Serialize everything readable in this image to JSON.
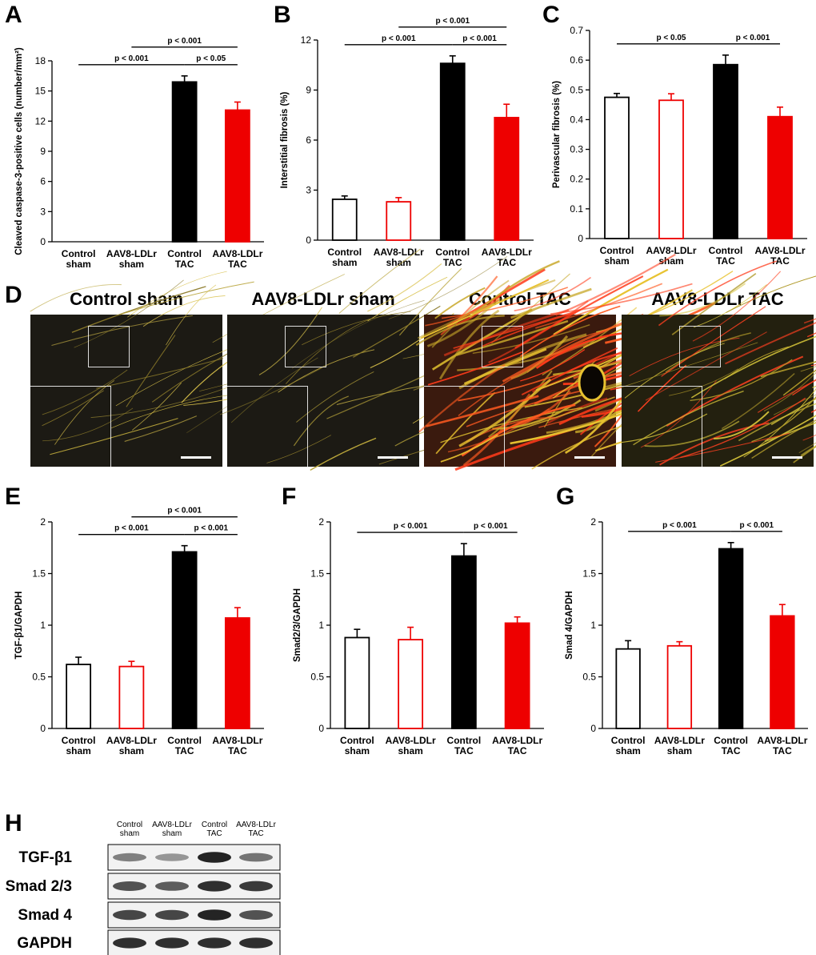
{
  "panel_letters": {
    "A": "A",
    "B": "B",
    "C": "C",
    "D": "D",
    "E": "E",
    "F": "F",
    "G": "G",
    "H": "H"
  },
  "colors": {
    "black": "#000000",
    "red": "#ee0000",
    "white": "#ffffff"
  },
  "chart_data": [
    {
      "id": "A",
      "type": "bar",
      "ylabel": "Cleaved caspase-3-positive cells (number/mm²)",
      "ylim": [
        0,
        18
      ],
      "yticks": [
        0,
        3,
        6,
        9,
        12,
        15,
        18
      ],
      "categories": [
        [
          "Control",
          "sham"
        ],
        [
          "AAV8-LDLr",
          "sham"
        ],
        [
          "Control",
          "TAC"
        ],
        [
          "AAV8-LDLr",
          "TAC"
        ]
      ],
      "values": [
        0,
        0,
        15.9,
        13.1
      ],
      "errors": [
        0,
        0,
        0.6,
        0.8
      ],
      "styles": [
        "open-black",
        "open-red",
        "solid-black",
        "solid-red"
      ],
      "significance": [
        {
          "from": 0,
          "to": 2,
          "label": "p < 0.001",
          "level": 1
        },
        {
          "from": 2,
          "to": 3,
          "label": "p < 0.05",
          "level": 1
        },
        {
          "from": 1,
          "to": 3,
          "label": "p < 0.001",
          "level": 2
        }
      ]
    },
    {
      "id": "B",
      "type": "bar",
      "ylabel": "Interstitial fibrosis (%)",
      "ylim": [
        0,
        12
      ],
      "yticks": [
        0,
        3,
        6,
        9,
        12
      ],
      "categories": [
        [
          "Control",
          "sham"
        ],
        [
          "AAV8-LDLr",
          "sham"
        ],
        [
          "Control",
          "TAC"
        ],
        [
          "AAV8-LDLr",
          "TAC"
        ]
      ],
      "values": [
        2.45,
        2.3,
        10.6,
        7.35
      ],
      "errors": [
        0.2,
        0.25,
        0.45,
        0.8
      ],
      "styles": [
        "open-black",
        "open-red",
        "solid-black",
        "solid-red"
      ],
      "significance": [
        {
          "from": 0,
          "to": 2,
          "label": "p < 0.001",
          "level": 1
        },
        {
          "from": 2,
          "to": 3,
          "label": "p < 0.001",
          "level": 1
        },
        {
          "from": 1,
          "to": 3,
          "label": "p < 0.001",
          "level": 2
        }
      ]
    },
    {
      "id": "C",
      "type": "bar",
      "ylabel": "Perivascular fibrosis (%)",
      "ylim": [
        0,
        0.7
      ],
      "yticks": [
        0,
        0.1,
        0.2,
        0.3,
        0.4,
        0.5,
        0.6,
        0.7
      ],
      "categories": [
        [
          "Control",
          "sham"
        ],
        [
          "AAV8-LDLr",
          "sham"
        ],
        [
          "Control",
          "TAC"
        ],
        [
          "AAV8-LDLr",
          "TAC"
        ]
      ],
      "values": [
        0.475,
        0.465,
        0.585,
        0.41
      ],
      "errors": [
        0.013,
        0.022,
        0.032,
        0.032
      ],
      "styles": [
        "open-black",
        "open-red",
        "solid-black",
        "solid-red"
      ],
      "significance": [
        {
          "from": 0,
          "to": 2,
          "label": "p < 0.05",
          "level": 1
        },
        {
          "from": 2,
          "to": 3,
          "label": "p < 0.001",
          "level": 1
        }
      ]
    },
    {
      "id": "E",
      "type": "bar",
      "ylabel": "TGF-β1/GAPDH",
      "ylim": [
        0,
        2
      ],
      "yticks": [
        0,
        0.5,
        1,
        1.5,
        2
      ],
      "categories": [
        [
          "Control",
          "sham"
        ],
        [
          "AAV8-LDLr",
          "sham"
        ],
        [
          "Control",
          "TAC"
        ],
        [
          "AAV8-LDLr",
          "TAC"
        ]
      ],
      "values": [
        0.62,
        0.6,
        1.71,
        1.07
      ],
      "errors": [
        0.07,
        0.05,
        0.06,
        0.1
      ],
      "styles": [
        "open-black",
        "open-red",
        "solid-black",
        "solid-red"
      ],
      "significance": [
        {
          "from": 0,
          "to": 2,
          "label": "p < 0.001",
          "level": 1
        },
        {
          "from": 2,
          "to": 3,
          "label": "p < 0.001",
          "level": 1
        },
        {
          "from": 1,
          "to": 3,
          "label": "p < 0.001",
          "level": 2
        }
      ]
    },
    {
      "id": "F",
      "type": "bar",
      "ylabel": "Smad2/3/GAPDH",
      "ylim": [
        0,
        2
      ],
      "yticks": [
        0,
        0.5,
        1,
        1.5,
        2
      ],
      "categories": [
        [
          "Control",
          "sham"
        ],
        [
          "AAV8-LDLr",
          "sham"
        ],
        [
          "Control",
          "TAC"
        ],
        [
          "AAV8-LDLr",
          "TAC"
        ]
      ],
      "values": [
        0.88,
        0.86,
        1.67,
        1.02
      ],
      "errors": [
        0.08,
        0.12,
        0.12,
        0.06
      ],
      "styles": [
        "open-black",
        "open-red",
        "solid-black",
        "solid-red"
      ],
      "significance": [
        {
          "from": 0,
          "to": 2,
          "label": "p < 0.001",
          "level": 1
        },
        {
          "from": 2,
          "to": 3,
          "label": "p < 0.001",
          "level": 1
        }
      ]
    },
    {
      "id": "G",
      "type": "bar",
      "ylabel": "Smad 4/GAPDH",
      "ylim": [
        0,
        2
      ],
      "yticks": [
        0,
        0.5,
        1,
        1.5,
        2
      ],
      "categories": [
        [
          "Control",
          "sham"
        ],
        [
          "AAV8-LDLr",
          "sham"
        ],
        [
          "Control",
          "TAC"
        ],
        [
          "AAV8-LDLr",
          "TAC"
        ]
      ],
      "values": [
        0.77,
        0.8,
        1.74,
        1.09
      ],
      "errors": [
        0.08,
        0.04,
        0.06,
        0.11
      ],
      "styles": [
        "open-black",
        "open-red",
        "solid-black",
        "solid-red"
      ],
      "significance": [
        {
          "from": 0,
          "to": 2,
          "label": "p < 0.001",
          "level": 1
        },
        {
          "from": 2,
          "to": 3,
          "label": "p < 0.001",
          "level": 1
        }
      ]
    }
  ],
  "micrographs": {
    "titles": [
      "Control sham",
      "AAV8-LDLr sham",
      "Control TAC",
      "AAV8-LDLr TAC"
    ],
    "staining": [
      "sparse-yellow",
      "sparse-yellow",
      "dense-red",
      "moderate-yellow"
    ]
  },
  "western_blot": {
    "lane_labels": [
      [
        "Control",
        "sham"
      ],
      [
        "AAV8-LDLr",
        "sham"
      ],
      [
        "Control",
        "TAC"
      ],
      [
        "AAV8-LDLr",
        "TAC"
      ]
    ],
    "bands": [
      {
        "name": "TGF-β1",
        "intensity": [
          0.55,
          0.45,
          0.95,
          0.6
        ]
      },
      {
        "name": "Smad 2/3",
        "intensity": [
          0.75,
          0.7,
          0.9,
          0.85
        ]
      },
      {
        "name": "Smad 4",
        "intensity": [
          0.8,
          0.8,
          0.95,
          0.75
        ]
      },
      {
        "name": "GAPDH",
        "intensity": [
          0.9,
          0.9,
          0.9,
          0.9
        ]
      }
    ]
  }
}
